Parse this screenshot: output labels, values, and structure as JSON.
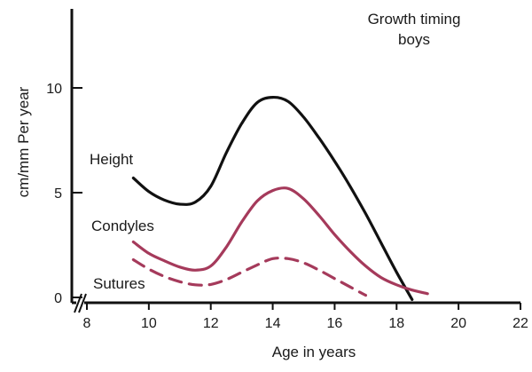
{
  "chart_data": {
    "type": "line",
    "title": [
      "Growth timing",
      "boys"
    ],
    "xlabel": "Age in years",
    "ylabel": "cm/mm Per year",
    "xlim": [
      8,
      22
    ],
    "ylim": [
      0,
      13.5
    ],
    "x_ticks": [
      8,
      10,
      12,
      14,
      16,
      18,
      20,
      22
    ],
    "y_ticks": [
      0,
      5,
      10
    ],
    "axis_break": "x",
    "grid": false,
    "legend": "inline labels",
    "series": [
      {
        "name": "Height",
        "color": "#111111",
        "style": "solid",
        "points": [
          [
            9.5,
            5.7
          ],
          [
            10.0,
            5.05
          ],
          [
            10.5,
            4.65
          ],
          [
            11.0,
            4.45
          ],
          [
            11.5,
            4.55
          ],
          [
            12.0,
            5.3
          ],
          [
            12.5,
            6.9
          ],
          [
            13.0,
            8.3
          ],
          [
            13.5,
            9.3
          ],
          [
            14.0,
            9.55
          ],
          [
            14.5,
            9.35
          ],
          [
            15.0,
            8.6
          ],
          [
            15.5,
            7.6
          ],
          [
            16.0,
            6.5
          ],
          [
            16.5,
            5.3
          ],
          [
            17.0,
            4.0
          ],
          [
            17.5,
            2.6
          ],
          [
            18.0,
            1.2
          ],
          [
            18.5,
            -0.1
          ]
        ]
      },
      {
        "name": "Condyles",
        "color": "#a53a5b",
        "style": "solid",
        "points": [
          [
            9.5,
            2.65
          ],
          [
            10.0,
            2.1
          ],
          [
            10.5,
            1.75
          ],
          [
            11.0,
            1.45
          ],
          [
            11.5,
            1.3
          ],
          [
            12.0,
            1.5
          ],
          [
            12.5,
            2.4
          ],
          [
            13.0,
            3.6
          ],
          [
            13.5,
            4.6
          ],
          [
            14.0,
            5.1
          ],
          [
            14.5,
            5.2
          ],
          [
            15.0,
            4.7
          ],
          [
            15.5,
            3.9
          ],
          [
            16.0,
            3.0
          ],
          [
            16.5,
            2.2
          ],
          [
            17.0,
            1.5
          ],
          [
            17.5,
            0.95
          ],
          [
            18.0,
            0.6
          ],
          [
            18.5,
            0.35
          ],
          [
            19.0,
            0.18
          ]
        ]
      },
      {
        "name": "Sutures",
        "color": "#a53a5b",
        "style": "dashed",
        "points": [
          [
            9.5,
            1.8
          ],
          [
            10.0,
            1.35
          ],
          [
            10.5,
            1.0
          ],
          [
            11.0,
            0.75
          ],
          [
            11.5,
            0.6
          ],
          [
            12.0,
            0.62
          ],
          [
            12.5,
            0.85
          ],
          [
            13.0,
            1.2
          ],
          [
            13.5,
            1.55
          ],
          [
            14.0,
            1.85
          ],
          [
            14.5,
            1.85
          ],
          [
            15.0,
            1.65
          ],
          [
            15.5,
            1.3
          ],
          [
            16.0,
            0.9
          ],
          [
            16.5,
            0.5
          ],
          [
            17.0,
            0.1
          ]
        ]
      }
    ]
  }
}
